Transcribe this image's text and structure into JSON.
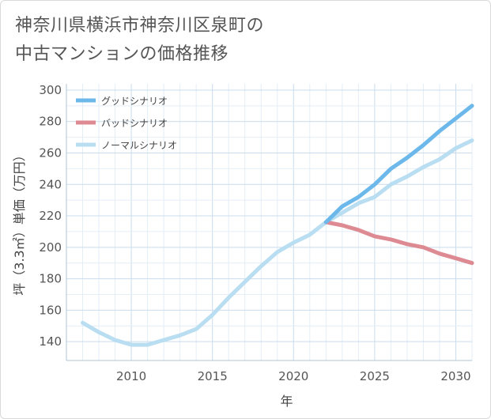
{
  "title_line1": "神奈川県横浜市神奈川区泉町の",
  "title_line2": "中古マンションの価格推移",
  "chart_data": {
    "type": "line",
    "xlabel": "年",
    "ylabel": "坪（3.3㎡）単価（万円）",
    "xlim": [
      2006,
      2031
    ],
    "ylim": [
      128,
      304
    ],
    "xticks": [
      2010,
      2015,
      2020,
      2025,
      2030
    ],
    "yticks": [
      140,
      160,
      180,
      200,
      220,
      240,
      260,
      280,
      300
    ],
    "series": [
      {
        "name": "グッドシナリオ",
        "color": "#6cb8ea",
        "x": [
          2022,
          2023,
          2024,
          2025,
          2026,
          2027,
          2028,
          2029,
          2030,
          2031
        ],
        "y": [
          216,
          226,
          232,
          240,
          250,
          257,
          265,
          274,
          282,
          290
        ]
      },
      {
        "name": "バッドシナリオ",
        "color": "#dd8a92",
        "x": [
          2022,
          2023,
          2024,
          2025,
          2026,
          2027,
          2028,
          2029,
          2030,
          2031
        ],
        "y": [
          216,
          214,
          211,
          207,
          205,
          202,
          200,
          196,
          193,
          190
        ]
      },
      {
        "name": "ノーマルシナリオ",
        "color": "#b9ddf1",
        "x": [
          2007,
          2008,
          2009,
          2010,
          2011,
          2012,
          2013,
          2014,
          2015,
          2016,
          2017,
          2018,
          2019,
          2020,
          2021,
          2022,
          2023,
          2024,
          2025,
          2026,
          2027,
          2028,
          2029,
          2030,
          2031
        ],
        "y": [
          152,
          146,
          141,
          138,
          138,
          141,
          144,
          148,
          157,
          168,
          178,
          188,
          197,
          203,
          208,
          216,
          222,
          228,
          232,
          240,
          245,
          251,
          256,
          263,
          268
        ]
      }
    ]
  }
}
